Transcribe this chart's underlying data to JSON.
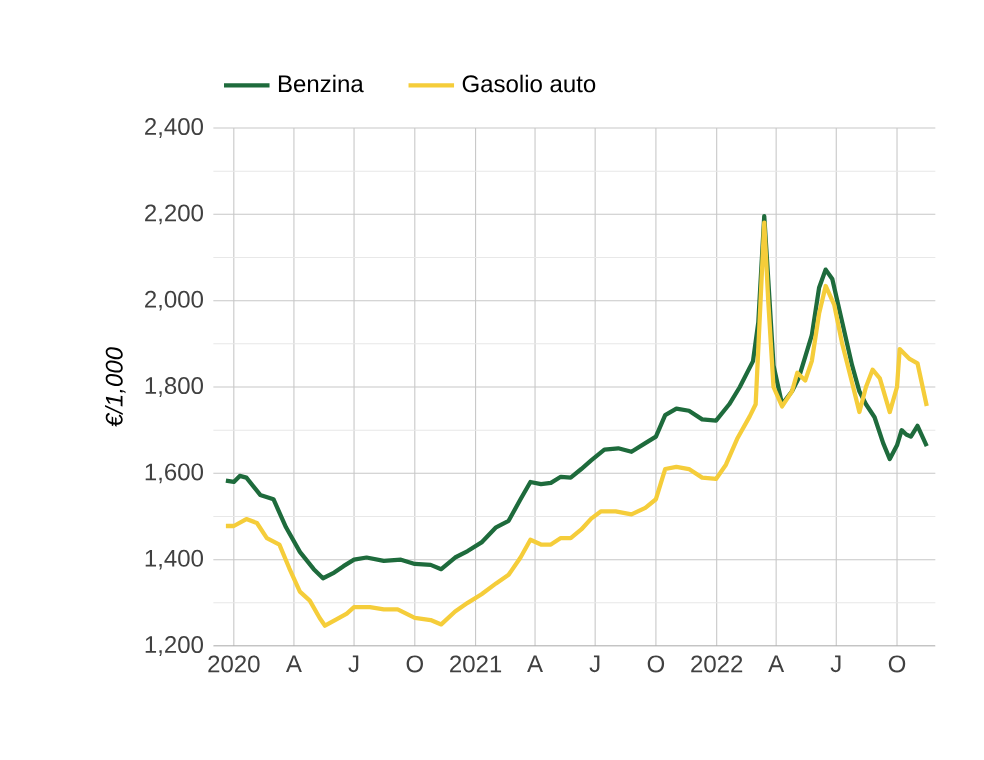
{
  "chart_data": {
    "type": "line",
    "ylabel": "€/1,000",
    "legend": "top",
    "grid": true,
    "line_style": "solid",
    "xlim": [
      "2019-12-01",
      "2022-11-28"
    ],
    "xticks": [
      {
        "value": "2020-01-01",
        "label": "2020"
      },
      {
        "value": "2020-04-01",
        "label": "A"
      },
      {
        "value": "2020-07-01",
        "label": "J"
      },
      {
        "value": "2020-10-01",
        "label": "O"
      },
      {
        "value": "2021-01-01",
        "label": "2021"
      },
      {
        "value": "2021-04-01",
        "label": "A"
      },
      {
        "value": "2021-07-01",
        "label": "J"
      },
      {
        "value": "2021-10-01",
        "label": "O"
      },
      {
        "value": "2022-01-01",
        "label": "2022"
      },
      {
        "value": "2022-04-01",
        "label": "A"
      },
      {
        "value": "2022-07-01",
        "label": "J"
      },
      {
        "value": "2022-10-01",
        "label": "O"
      }
    ],
    "ylim": [
      1200,
      2400
    ],
    "yticks": [
      {
        "value": 1200,
        "label": "1,200"
      },
      {
        "value": 1400,
        "label": "1,400"
      },
      {
        "value": 1600,
        "label": "1,600"
      },
      {
        "value": 1800,
        "label": "1,800"
      },
      {
        "value": 2000,
        "label": "2,000"
      },
      {
        "value": 2200,
        "label": "2,200"
      },
      {
        "value": 2400,
        "label": "2,400"
      }
    ],
    "series": [
      {
        "name": "Benzina",
        "color": "#1e6b3c",
        "x": [
          "2019-12-20",
          "2020-01-01",
          "2020-01-10",
          "2020-01-20",
          "2020-02-10",
          "2020-03-01",
          "2020-03-20",
          "2020-04-10",
          "2020-05-01",
          "2020-05-15",
          "2020-06-01",
          "2020-06-15",
          "2020-07-01",
          "2020-07-20",
          "2020-08-15",
          "2020-09-10",
          "2020-10-01",
          "2020-10-25",
          "2020-11-10",
          "2020-12-01",
          "2020-12-20",
          "2021-01-10",
          "2021-02-01",
          "2021-02-20",
          "2021-03-10",
          "2021-03-25",
          "2021-04-10",
          "2021-04-25",
          "2021-05-10",
          "2021-05-25",
          "2021-06-10",
          "2021-06-25",
          "2021-07-15",
          "2021-08-05",
          "2021-08-25",
          "2021-09-15",
          "2021-10-01",
          "2021-10-15",
          "2021-11-01",
          "2021-11-20",
          "2021-12-10",
          "2021-12-31",
          "2022-01-20",
          "2022-02-05",
          "2022-02-25",
          "2022-03-05",
          "2022-03-14",
          "2022-03-20",
          "2022-03-28",
          "2022-04-10",
          "2022-04-25",
          "2022-05-05",
          "2022-05-15",
          "2022-05-25",
          "2022-06-05",
          "2022-06-15",
          "2022-06-25",
          "2022-07-10",
          "2022-07-25",
          "2022-08-05",
          "2022-08-15",
          "2022-08-28",
          "2022-09-10",
          "2022-09-20",
          "2022-10-01",
          "2022-10-08",
          "2022-10-15",
          "2022-10-22",
          "2022-11-01",
          "2022-11-15"
        ],
        "values": [
          1583,
          1580,
          1594,
          1590,
          1550,
          1540,
          1475,
          1418,
          1378,
          1357,
          1370,
          1385,
          1400,
          1405,
          1397,
          1400,
          1390,
          1388,
          1378,
          1405,
          1420,
          1440,
          1475,
          1490,
          1540,
          1580,
          1575,
          1578,
          1592,
          1590,
          1610,
          1630,
          1655,
          1658,
          1650,
          1670,
          1685,
          1735,
          1750,
          1745,
          1725,
          1722,
          1760,
          1800,
          1860,
          1950,
          2196,
          2050,
          1850,
          1760,
          1790,
          1820,
          1870,
          1920,
          2030,
          2072,
          2050,
          1950,
          1850,
          1790,
          1760,
          1730,
          1670,
          1633,
          1665,
          1700,
          1690,
          1685,
          1710,
          1663
        ]
      },
      {
        "name": "Gasolio auto",
        "color": "#f5cd3a",
        "x": [
          "2019-12-20",
          "2020-01-01",
          "2020-01-20",
          "2020-02-05",
          "2020-02-20",
          "2020-03-10",
          "2020-03-25",
          "2020-04-10",
          "2020-04-25",
          "2020-05-10",
          "2020-05-18",
          "2020-06-05",
          "2020-06-20",
          "2020-07-01",
          "2020-07-25",
          "2020-08-15",
          "2020-09-05",
          "2020-10-01",
          "2020-10-25",
          "2020-11-10",
          "2020-12-01",
          "2020-12-20",
          "2021-01-10",
          "2021-02-01",
          "2021-02-20",
          "2021-03-10",
          "2021-03-25",
          "2021-04-10",
          "2021-04-25",
          "2021-05-10",
          "2021-05-25",
          "2021-06-10",
          "2021-06-25",
          "2021-07-10",
          "2021-08-01",
          "2021-08-25",
          "2021-09-15",
          "2021-10-01",
          "2021-10-15",
          "2021-11-01",
          "2021-11-20",
          "2021-12-10",
          "2021-12-31",
          "2022-01-15",
          "2022-02-01",
          "2022-02-20",
          "2022-03-01",
          "2022-03-14",
          "2022-03-20",
          "2022-03-28",
          "2022-04-10",
          "2022-04-25",
          "2022-05-03",
          "2022-05-15",
          "2022-05-25",
          "2022-06-05",
          "2022-06-15",
          "2022-06-28",
          "2022-07-10",
          "2022-07-25",
          "2022-08-05",
          "2022-08-15",
          "2022-08-25",
          "2022-09-05",
          "2022-09-20",
          "2022-10-01",
          "2022-10-05",
          "2022-10-20",
          "2022-11-01",
          "2022-11-15"
        ],
        "values": [
          1478,
          1478,
          1494,
          1485,
          1450,
          1435,
          1380,
          1326,
          1305,
          1265,
          1247,
          1262,
          1275,
          1290,
          1290,
          1285,
          1285,
          1265,
          1260,
          1250,
          1280,
          1300,
          1320,
          1345,
          1365,
          1405,
          1446,
          1435,
          1435,
          1450,
          1450,
          1470,
          1495,
          1512,
          1512,
          1505,
          1520,
          1540,
          1610,
          1615,
          1610,
          1590,
          1587,
          1620,
          1680,
          1732,
          1760,
          2181,
          2000,
          1800,
          1755,
          1790,
          1833,
          1815,
          1860,
          1970,
          2034,
          1990,
          1900,
          1810,
          1742,
          1800,
          1840,
          1820,
          1742,
          1800,
          1888,
          1865,
          1855,
          1756
        ]
      }
    ]
  }
}
